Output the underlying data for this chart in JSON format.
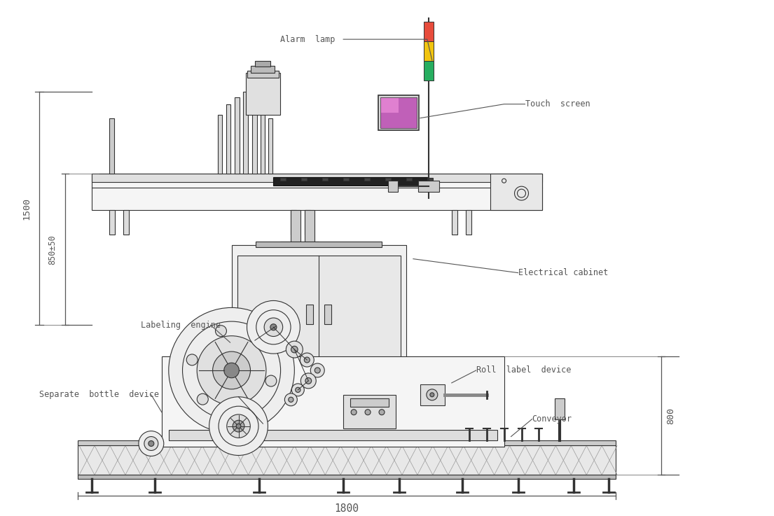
{
  "bg_color": "#ffffff",
  "line_color": "#333333",
  "line_width": 0.8,
  "font_color": "#444444",
  "font_size": 8.5,
  "labels": {
    "alarm_lamp": "Alarm  lamp",
    "touch_screen": "Touch  screen",
    "electrical_cabinet": "Electrical cabinet",
    "labeling_engine": "Labeling  engine",
    "separate_bottle": "Separate  bottle  device",
    "roll_label": "Roll  label  device",
    "conveyor": "Conveyor",
    "dim_1500": "1500",
    "dim_850": "850±50",
    "dim_800": "800",
    "dim_1800": "1800"
  },
  "alarm_colors": [
    "#e74c3c",
    "#f1c40f",
    "#27ae60"
  ],
  "touch_screen_color": "#c060b8",
  "touch_screen_color2": "#e080d0"
}
